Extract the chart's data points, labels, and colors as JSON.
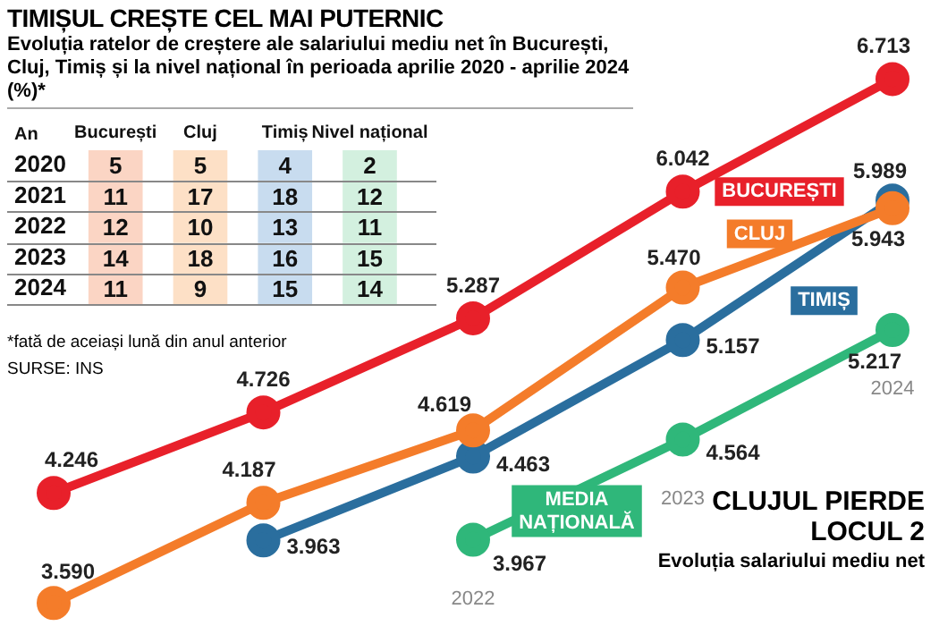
{
  "chart_data": [
    {
      "type": "heatmap",
      "title": "TIMIȘUL CREȘTE CEL MAI PUTERNIC",
      "subtitle": "Evoluția ratelor de creștere ale salariului mediu net în București, Cluj, Timiș și la nivel național în perioada aprilie 2020 - aprilie 2024 (%)*",
      "ylabel": "An",
      "categories": [
        "București",
        "Cluj",
        "Timiș",
        "Nivel național"
      ],
      "y_categories": [
        "2020",
        "2021",
        "2022",
        "2023",
        "2024"
      ],
      "colors": [
        "#fbd5c4",
        "#fde0c6",
        "#c8dcef",
        "#d3f0df"
      ],
      "data_labels": true,
      "cells": [
        [
          5,
          5,
          4,
          2
        ],
        [
          11,
          17,
          18,
          12
        ],
        [
          12,
          10,
          13,
          11
        ],
        [
          14,
          18,
          16,
          15
        ],
        [
          11,
          9,
          15,
          14
        ]
      ],
      "annotations": [
        "*fată de aceiași lună din anul anterior",
        "SURSE: INS"
      ]
    },
    {
      "type": "line",
      "title": "CLUJUL PIERDE LOCUL 2",
      "subtitle": "Evoluția salariului mediu net",
      "categories": [
        null,
        null,
        "2022",
        "2023",
        "2024"
      ],
      "tick_labels": "x",
      "legend": false,
      "marker": "circle",
      "data_labels": true,
      "series": [
        {
          "name": "BUCUREȘTI",
          "color": "#e8202a",
          "values": [
            4246,
            4726,
            5287,
            6042,
            6713
          ],
          "value_labels": [
            "4.246",
            "4.726",
            "5.287",
            "6.042",
            "6.713"
          ]
        },
        {
          "name": "CLUJ",
          "color": "#f47c2a",
          "values": [
            3590,
            4187,
            4619,
            5470,
            5943
          ],
          "value_labels": [
            "3.590",
            "4.187",
            "4.619",
            "5.470",
            "5.943"
          ]
        },
        {
          "name": "TIMIȘ",
          "color": "#2a6e9e",
          "values": [
            null,
            3963,
            4463,
            5157,
            5989
          ],
          "value_labels": [
            null,
            "3.963",
            "4.463",
            "5.157",
            "5.989"
          ]
        },
        {
          "name": "MEDIA NAȚIONALĂ",
          "color": "#2fb77a",
          "values": [
            null,
            null,
            3967,
            4564,
            5217
          ],
          "value_labels": [
            null,
            null,
            "3.967",
            "4.564",
            "5.217"
          ]
        }
      ]
    }
  ]
}
